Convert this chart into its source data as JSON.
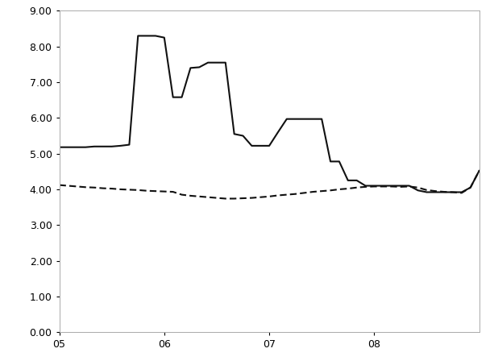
{
  "xlim": [
    0,
    48
  ],
  "ylim": [
    0.0,
    9.0
  ],
  "yticks": [
    0.0,
    1.0,
    2.0,
    3.0,
    4.0,
    5.0,
    6.0,
    7.0,
    8.0,
    9.0
  ],
  "xtick_positions": [
    0,
    12,
    24,
    36
  ],
  "xtick_labels": [
    "05",
    "06",
    "07",
    "08"
  ],
  "solid_color": "#111111",
  "dashed_color": "#111111",
  "background_color": "#ffffff",
  "line_width": 1.5,
  "solid_x": [
    0,
    1,
    2,
    3,
    4,
    5,
    6,
    7,
    8,
    9,
    10,
    11,
    12,
    13,
    14,
    15,
    16,
    17,
    18,
    19,
    20,
    21,
    22,
    23,
    24,
    25,
    26,
    27,
    28,
    29,
    30,
    31,
    32,
    33,
    34,
    35,
    36,
    37,
    38,
    39,
    40,
    41,
    42,
    43,
    44,
    45,
    46,
    47,
    48
  ],
  "solid_y": [
    5.18,
    5.18,
    5.18,
    5.18,
    5.2,
    5.2,
    5.2,
    5.22,
    5.25,
    8.3,
    8.3,
    8.3,
    8.25,
    6.58,
    6.58,
    7.4,
    7.42,
    7.55,
    7.55,
    7.55,
    5.55,
    5.5,
    5.22,
    5.22,
    5.22,
    5.6,
    5.97,
    5.97,
    5.97,
    5.97,
    5.97,
    4.78,
    4.78,
    4.25,
    4.25,
    4.1,
    4.1,
    4.1,
    4.1,
    4.1,
    4.1,
    3.97,
    3.92,
    3.92,
    3.92,
    3.92,
    3.92,
    4.05,
    4.52
  ],
  "dashed_x": [
    0,
    1,
    2,
    3,
    4,
    5,
    6,
    7,
    8,
    9,
    10,
    11,
    12,
    13,
    14,
    15,
    16,
    17,
    18,
    19,
    20,
    21,
    22,
    23,
    24,
    25,
    26,
    27,
    28,
    29,
    30,
    31,
    32,
    33,
    34,
    35,
    36,
    37,
    38,
    39,
    40,
    41,
    42,
    43,
    44,
    45,
    46,
    47,
    48
  ],
  "dashed_y": [
    4.12,
    4.1,
    4.08,
    4.06,
    4.05,
    4.03,
    4.02,
    4.0,
    3.99,
    3.98,
    3.96,
    3.95,
    3.94,
    3.93,
    3.85,
    3.82,
    3.8,
    3.78,
    3.76,
    3.74,
    3.74,
    3.75,
    3.76,
    3.78,
    3.8,
    3.83,
    3.85,
    3.87,
    3.9,
    3.93,
    3.95,
    3.97,
    4.0,
    4.02,
    4.05,
    4.07,
    4.08,
    4.08,
    4.08,
    4.07,
    4.08,
    4.05,
    3.98,
    3.95,
    3.93,
    3.92,
    3.9,
    4.05,
    4.52
  ]
}
